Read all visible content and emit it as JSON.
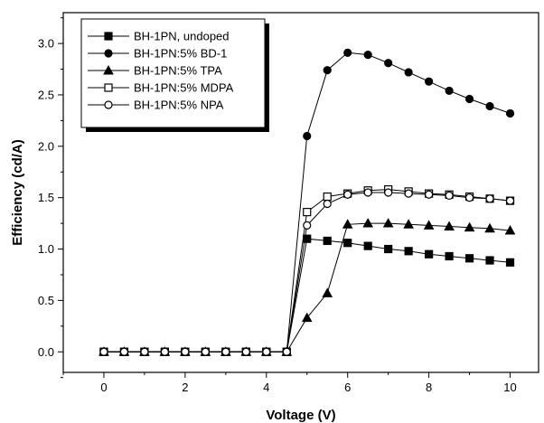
{
  "chart_data": {
    "type": "line",
    "xlabel": "Voltage (V)",
    "ylabel": "Efficiency (cd/A)",
    "xlim": [
      -1.0,
      10.7
    ],
    "ylim": [
      -0.2,
      3.3
    ],
    "xticks": [
      0,
      2,
      4,
      6,
      8,
      10
    ],
    "yticks": [
      0.0,
      0.5,
      1.0,
      1.5,
      2.0,
      2.5,
      3.0
    ],
    "x": [
      0,
      0.5,
      1,
      1.5,
      2,
      2.5,
      3,
      3.5,
      4,
      4.5,
      5,
      5.5,
      6,
      6.5,
      7,
      7.5,
      8,
      8.5,
      9,
      9.5,
      10
    ],
    "legend_position": "top-left",
    "grid": false,
    "series": [
      {
        "name": "BH-1PN, undoped",
        "marker": "square-filled",
        "values": [
          0,
          0,
          0,
          0,
          0,
          0,
          0,
          0,
          0,
          0,
          1.1,
          1.08,
          1.06,
          1.03,
          1.0,
          0.98,
          0.95,
          0.93,
          0.91,
          0.89,
          0.87
        ]
      },
      {
        "name": "BH-1PN:5% BD-1",
        "marker": "circle-filled",
        "values": [
          0,
          0,
          0,
          0,
          0,
          0,
          0,
          0,
          0,
          0,
          2.1,
          2.74,
          2.91,
          2.89,
          2.81,
          2.72,
          2.63,
          2.54,
          2.46,
          2.39,
          2.32
        ]
      },
      {
        "name": "BH-1PN:5% TPA",
        "marker": "triangle-filled",
        "values": [
          0,
          0,
          0,
          0,
          0,
          0,
          0,
          0,
          0,
          0,
          0.33,
          0.57,
          1.24,
          1.25,
          1.25,
          1.24,
          1.23,
          1.22,
          1.21,
          1.2,
          1.18
        ]
      },
      {
        "name": "BH-1PN:5% MDPA",
        "marker": "square-open",
        "values": [
          0,
          0,
          0,
          0,
          0,
          0,
          0,
          0,
          0,
          0,
          1.36,
          1.51,
          1.54,
          1.57,
          1.58,
          1.56,
          1.54,
          1.53,
          1.51,
          1.49,
          1.47
        ]
      },
      {
        "name": "BH-1PN:5% NPA",
        "marker": "circle-open",
        "values": [
          0,
          0,
          0,
          0,
          0,
          0,
          0,
          0,
          0,
          0,
          1.23,
          1.44,
          1.53,
          1.55,
          1.55,
          1.54,
          1.53,
          1.52,
          1.5,
          1.49,
          1.47
        ]
      }
    ]
  }
}
